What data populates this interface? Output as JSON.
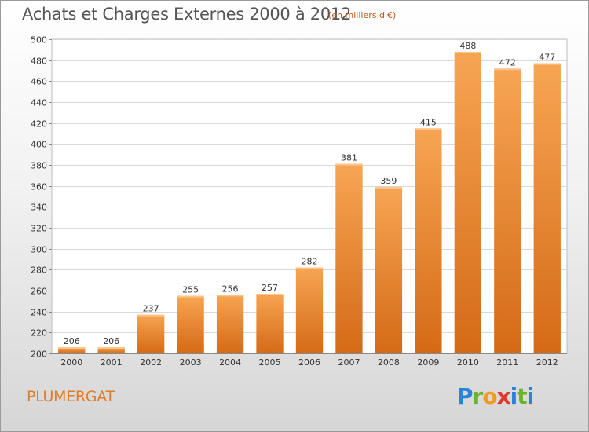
{
  "chart_data": {
    "type": "bar",
    "title": "Achats et Charges Externes 2000 à 2012",
    "subtitle": "(en milliers d'€)",
    "categories": [
      "2000",
      "2001",
      "2002",
      "2003",
      "2004",
      "2005",
      "2006",
      "2007",
      "2008",
      "2009",
      "2010",
      "2011",
      "2012"
    ],
    "values": [
      206,
      206,
      237,
      255,
      256,
      257,
      282,
      381,
      359,
      415,
      488,
      472,
      477
    ],
    "ylim": [
      200,
      500
    ],
    "yticks": [
      200,
      220,
      240,
      260,
      280,
      300,
      320,
      340,
      360,
      380,
      400,
      420,
      440,
      460,
      480,
      500
    ],
    "grid": true,
    "bar_color": "#f08a2a",
    "xlabel": "",
    "ylabel": ""
  },
  "footer": {
    "town": "PLUMERGAT",
    "logo": "Proxiti"
  }
}
